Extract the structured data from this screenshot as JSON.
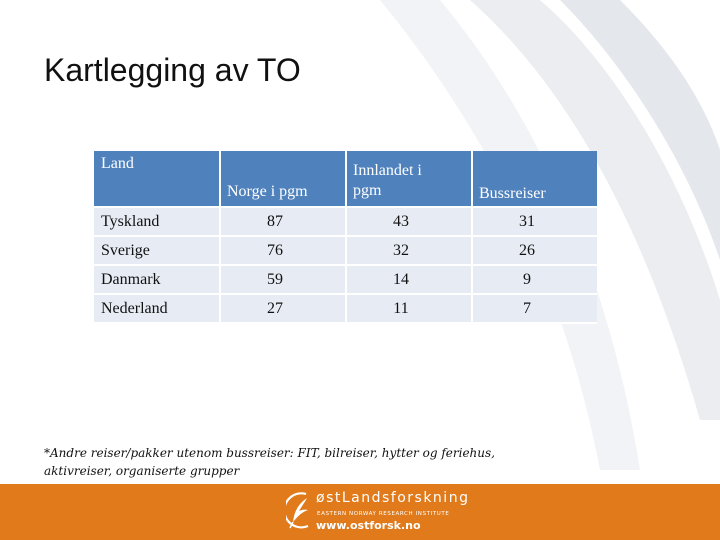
{
  "slide": {
    "title": "Kartlegging av TO"
  },
  "table": {
    "headers": {
      "land": "Land",
      "norge": "Norge i pgm",
      "innlandet_line1": "Innlandet i",
      "innlandet_line2": "pgm",
      "buss": "Bussreiser"
    },
    "rows": [
      {
        "country": "Tyskland",
        "norge": "87",
        "innlandet": "43",
        "buss": "31"
      },
      {
        "country": "Sverige",
        "norge": "76",
        "innlandet": "32",
        "buss": "26"
      },
      {
        "country": "Danmark",
        "norge": "59",
        "innlandet": "14",
        "buss": "9"
      },
      {
        "country": "Nederland",
        "norge": "27",
        "innlandet": "11",
        "buss": "7"
      }
    ]
  },
  "footnote": {
    "line1": "*Andre reiser/pakker utenom bussreiser: FIT, bilreiser, hytter og feriehus,",
    "line2": "aktivreiser, organiserte grupper"
  },
  "footer": {
    "brand_name": "østLandsforskning",
    "tagline": "EASTERN NORWAY RESEARCH INSTITUTE",
    "url": "www.ostforsk.no",
    "band_color": "#e07a1a",
    "logo_icon": "feather-circle-icon"
  },
  "colors": {
    "header_bg": "#4f81bd",
    "row_bg": "#e7ecf4"
  }
}
